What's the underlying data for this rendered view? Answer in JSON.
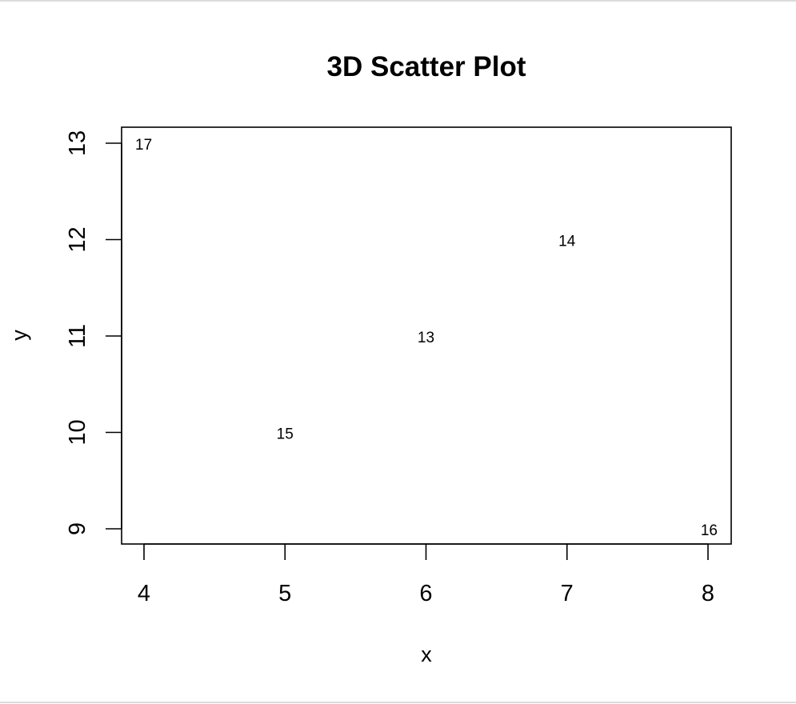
{
  "chart_data": {
    "type": "scatter",
    "title": "3D Scatter Plot",
    "xlabel": "x",
    "ylabel": "y",
    "xlim": [
      4,
      8
    ],
    "ylim": [
      9,
      13
    ],
    "x_ticks": [
      4,
      5,
      6,
      7,
      8
    ],
    "y_ticks": [
      9,
      10,
      11,
      12,
      13
    ],
    "grid": false,
    "marker": "text",
    "points": [
      {
        "x": 6,
        "y": 11,
        "label": "13"
      },
      {
        "x": 7,
        "y": 12,
        "label": "14"
      },
      {
        "x": 5,
        "y": 10,
        "label": "15"
      },
      {
        "x": 8,
        "y": 9,
        "label": "16"
      },
      {
        "x": 4,
        "y": 13,
        "label": "17"
      }
    ]
  }
}
